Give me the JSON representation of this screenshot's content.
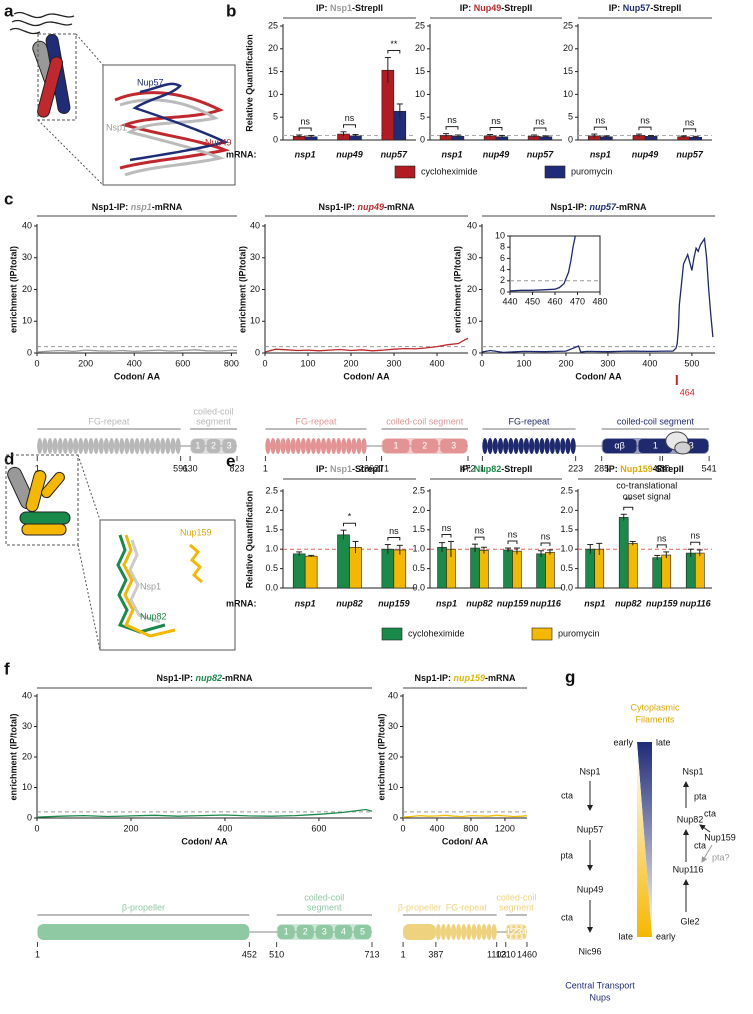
{
  "panel_labels": [
    "a",
    "b",
    "c",
    "d",
    "e",
    "f",
    "g"
  ],
  "panel_a": {
    "labels": [
      "Nup57",
      "Nsp1",
      "Nup49"
    ]
  },
  "panel_d": {
    "labels": [
      "Nup159",
      "Nsp1",
      "Nup82"
    ]
  },
  "panel_g": {
    "top_label": [
      "Cytoplasmic",
      "Filaments"
    ],
    "bottom_label": [
      "Central Transport",
      "Nups"
    ],
    "left_ends": [
      "early",
      "late"
    ],
    "right_ends": [
      "late",
      "early"
    ],
    "left_path": [
      "Nsp1",
      "cta",
      "Nup57",
      "pta",
      "Nup49",
      "cta",
      "Nic96"
    ],
    "right_nodes": [
      "Nsp1",
      "pta",
      "Nup82",
      "cta",
      "Nup159",
      "cta",
      "pta?",
      "Nup116",
      "Gle2"
    ]
  },
  "chart_data": [
    {
      "type": "bar",
      "title": [
        "IP: ",
        "Nsp1",
        "-StrepII"
      ],
      "title_colors": [
        "#111111",
        "#9a9a9a",
        "#111111"
      ],
      "ylabel": "Relative Quantification",
      "x_row_label": "mRNA:",
      "categories": [
        "nsp1",
        "nup49",
        "nup57"
      ],
      "series": [
        {
          "name": "cycloheximide",
          "color": "#b01c22",
          "values": [
            0.8,
            1.3,
            15.3
          ],
          "errors": [
            0.3,
            0.5,
            2.8
          ]
        },
        {
          "name": "puromycin",
          "color": "#1f2c78",
          "values": [
            0.7,
            0.9,
            6.3
          ],
          "errors": [
            0.3,
            0.3,
            1.6
          ]
        }
      ],
      "annotations": [
        "ns",
        "ns",
        "**"
      ],
      "hline": 1,
      "hline_color": "#aaaaaa",
      "ylim": [
        0,
        25
      ],
      "yticks": [
        0,
        5,
        10,
        15,
        20,
        25
      ]
    },
    {
      "type": "bar",
      "title": [
        "IP: ",
        "Nup49",
        "-StrepII"
      ],
      "title_colors": [
        "#111111",
        "#c0282d",
        "#111111"
      ],
      "categories": [
        "nsp1",
        "nup49",
        "nup57"
      ],
      "series": [
        {
          "color": "#b01c22",
          "values": [
            1.0,
            0.9,
            0.8
          ],
          "errors": [
            0.4,
            0.3,
            0.3
          ]
        },
        {
          "color": "#1f2c78",
          "values": [
            0.8,
            0.7,
            0.7
          ],
          "errors": [
            0.3,
            0.3,
            0.2
          ]
        }
      ],
      "annotations": [
        "ns",
        "ns",
        "ns"
      ],
      "hline": 1,
      "hline_color": "#aaaaaa",
      "ylim": [
        0,
        25
      ],
      "yticks": [
        0,
        5,
        10,
        15,
        20,
        25
      ]
    },
    {
      "type": "bar",
      "title": [
        "IP: ",
        "Nup57",
        "-StrepII"
      ],
      "title_colors": [
        "#111111",
        "#1f2c78",
        "#111111"
      ],
      "categories": [
        "nsp1",
        "nup49",
        "nup57"
      ],
      "series": [
        {
          "color": "#b01c22",
          "values": [
            0.9,
            1.0,
            0.7
          ],
          "errors": [
            0.4,
            0.3,
            0.2
          ]
        },
        {
          "color": "#1f2c78",
          "values": [
            0.7,
            0.8,
            0.6
          ],
          "errors": [
            0.2,
            0.2,
            0.2
          ]
        }
      ],
      "annotations": [
        "ns",
        "ns",
        "ns"
      ],
      "hline": 1,
      "hline_color": "#aaaaaa",
      "ylim": [
        0,
        25
      ],
      "yticks": [
        0,
        5,
        10,
        15,
        20,
        25
      ]
    },
    {
      "type": "line",
      "title": [
        "Nsp1-IP: ",
        "nsp1",
        "-mRNA"
      ],
      "title_colors": [
        "#111111",
        "#9a9a9a",
        "#111111"
      ],
      "ylabel": "enrichment (IP/total)",
      "xlabel": "Codon/ AA",
      "xlim": [
        0,
        823
      ],
      "xticks": [
        0,
        200,
        400,
        600,
        800
      ],
      "ylim": [
        0,
        40
      ],
      "yticks": [
        0,
        10,
        20,
        30,
        40
      ],
      "hline": 2,
      "hline_color": "#999999",
      "color": "#9a9a9a",
      "x": [
        0,
        50,
        100,
        150,
        200,
        250,
        300,
        350,
        400,
        450,
        500,
        550,
        600,
        650,
        700,
        750,
        800,
        823
      ],
      "values": [
        0.3,
        0.6,
        0.8,
        0.5,
        0.9,
        0.7,
        0.6,
        0.8,
        0.5,
        0.7,
        0.9,
        0.6,
        0.8,
        1.0,
        0.7,
        0.6,
        0.9,
        0.8
      ],
      "domain_color": "#b8b8b8",
      "domains": [
        {
          "label": "FG-repeat",
          "kind": "fg",
          "ticks": [
            1,
            591
          ]
        },
        {
          "label": [
            "coiled-coil",
            "segment"
          ],
          "kind": "coil",
          "ticks": [
            630,
            823
          ],
          "parts": [
            "1",
            "2",
            "3"
          ]
        }
      ]
    },
    {
      "type": "line",
      "title": [
        "Nsp1-IP: ",
        "nup49",
        "-mRNA"
      ],
      "title_colors": [
        "#111111",
        "#c0282d",
        "#111111"
      ],
      "ylabel": "enrichment (IP/total)",
      "xlabel": "Codon/ AA",
      "xlim": [
        0,
        472
      ],
      "xticks": [
        0,
        100,
        200,
        300,
        400
      ],
      "ylim": [
        0,
        40
      ],
      "yticks": [
        0,
        10,
        20,
        30,
        40
      ],
      "hline": 2,
      "hline_color": "#999999",
      "color": "#c0282d",
      "x": [
        0,
        25,
        50,
        75,
        100,
        125,
        150,
        175,
        200,
        225,
        250,
        275,
        300,
        325,
        350,
        375,
        400,
        425,
        450,
        465,
        472
      ],
      "values": [
        0.3,
        1.2,
        1.0,
        0.8,
        0.9,
        0.7,
        0.9,
        1.1,
        0.8,
        1.0,
        0.7,
        0.9,
        1.2,
        1.4,
        1.3,
        1.6,
        2.0,
        2.6,
        3.0,
        4.2,
        4.6
      ],
      "domain_color": "#e39393",
      "domains": [
        {
          "label": "FG-repeat",
          "kind": "fg",
          "ticks": [
            1,
            236
          ]
        },
        {
          "label": "coiled-coil segment",
          "kind": "coil",
          "ticks": [
            271,
            472
          ],
          "parts": [
            "1",
            "2",
            "3"
          ]
        }
      ]
    },
    {
      "type": "line",
      "title": [
        "Nsp1-IP: ",
        "nup57",
        "-mRNA"
      ],
      "title_colors": [
        "#111111",
        "#1f2c78",
        "#111111"
      ],
      "ylabel": "enrichment (IP/total)",
      "xlabel": "Codon/ AA",
      "xlim": [
        0,
        555
      ],
      "xticks": [
        0,
        100,
        200,
        300,
        400,
        500
      ],
      "ylim": [
        0,
        40
      ],
      "yticks": [
        0,
        10,
        20,
        30,
        40
      ],
      "hline": 2,
      "hline_color": "#999999",
      "color": "#1f2a6e",
      "x": [
        0,
        20,
        50,
        100,
        150,
        200,
        230,
        235,
        250,
        300,
        350,
        400,
        440,
        455,
        462,
        465,
        468,
        470,
        480,
        490,
        500,
        505,
        510,
        515,
        520,
        525,
        530,
        535,
        540,
        545,
        550
      ],
      "values": [
        0.3,
        0.8,
        0.2,
        0.5,
        0.4,
        0.6,
        2.2,
        0.3,
        0.5,
        0.4,
        0.6,
        0.5,
        0.6,
        0.6,
        1.5,
        3,
        8,
        15,
        28,
        31,
        26,
        30,
        33,
        32,
        34,
        35,
        36,
        30,
        20,
        12,
        5
      ],
      "domain_color": "#1f2a6e",
      "domains": [
        {
          "label": "FG-repeat",
          "kind": "fg",
          "ticks": [
            1,
            223
          ]
        },
        {
          "label": "coiled-coil segment",
          "kind": "coil",
          "ticks": [
            285,
            424,
            430,
            541
          ],
          "parts": [
            "αβ",
            "1",
            "3"
          ]
        }
      ],
      "marker": 464,
      "marker_note": [
        "co-translational",
        "onset signal"
      ],
      "inset": {
        "xlim": [
          440,
          480
        ],
        "ylim": [
          0,
          10
        ],
        "xticks": [
          440,
          450,
          460,
          470,
          480
        ],
        "yticks": [
          0,
          2,
          4,
          6,
          8,
          10
        ],
        "x": [
          440,
          445,
          450,
          455,
          460,
          462,
          464,
          466,
          467,
          468,
          469
        ],
        "values": [
          0.2,
          0.3,
          0.3,
          0.4,
          0.5,
          0.8,
          1.5,
          3.5,
          5.5,
          8,
          10
        ]
      }
    },
    {
      "type": "bar",
      "title": [
        "IP: ",
        "Nsp1",
        "-StrepII"
      ],
      "title_colors": [
        "#111111",
        "#9a9a9a",
        "#111111"
      ],
      "ylabel": "Relative Quantification",
      "x_row_label": "mRNA:",
      "categories": [
        "nsp1",
        "nup82",
        "nup159"
      ],
      "series": [
        {
          "name": "cycloheximide",
          "color": "#1a8a4a",
          "values": [
            0.88,
            1.37,
            1.0
          ],
          "errors": [
            0.05,
            0.12,
            0.12
          ]
        },
        {
          "name": "puromycin",
          "color": "#f5b800",
          "values": [
            0.82,
            1.05,
            0.98
          ],
          "errors": [
            0.02,
            0.15,
            0.12
          ]
        }
      ],
      "annotations": [
        null,
        "*",
        "ns"
      ],
      "hline": 1,
      "hline_color": "#e06060",
      "ylim": [
        0,
        2.5
      ],
      "yticks": [
        {
          "value": 0,
          "label": "0.0"
        },
        0.5,
        {
          "value": 1,
          "label": "1.0"
        },
        1.5,
        {
          "value": 2,
          "label": "2.0"
        },
        2.5
      ]
    },
    {
      "type": "bar",
      "title": [
        "IP: ",
        "Nup82",
        "-StrepII"
      ],
      "title_colors": [
        "#111111",
        "#1a8a4a",
        "#111111"
      ],
      "categories": [
        "nsp1",
        "nup82",
        "nup159",
        "nup116"
      ],
      "series": [
        {
          "color": "#1a8a4a",
          "values": [
            1.05,
            1.03,
            0.98,
            0.88
          ],
          "errors": [
            0.12,
            0.1,
            0.05,
            0.08
          ]
        },
        {
          "color": "#f5b800",
          "values": [
            1.0,
            0.97,
            0.95,
            0.92
          ],
          "errors": [
            0.2,
            0.08,
            0.08,
            0.06
          ]
        }
      ],
      "annotations": [
        "ns",
        "ns",
        "ns",
        "ns"
      ],
      "hline": 1,
      "hline_color": "#e06060",
      "ylim": [
        0,
        2.5
      ],
      "yticks": [
        {
          "value": 0,
          "label": "0.0"
        },
        0.5,
        {
          "value": 1,
          "label": "1.0"
        },
        1.5,
        {
          "value": 2,
          "label": "2.0"
        },
        2.5
      ]
    },
    {
      "type": "bar",
      "title": [
        "IP: ",
        "Nup159",
        "-StrepII"
      ],
      "title_colors": [
        "#111111",
        "#e0a800",
        "#111111"
      ],
      "categories": [
        "nsp1",
        "nup82",
        "nup159",
        "nup116"
      ],
      "series": [
        {
          "color": "#1a8a4a",
          "values": [
            1.0,
            1.82,
            0.78,
            0.9
          ],
          "errors": [
            0.12,
            0.08,
            0.06,
            0.1
          ]
        },
        {
          "color": "#f5b800",
          "values": [
            1.0,
            1.15,
            0.85,
            0.9
          ],
          "errors": [
            0.15,
            0.05,
            0.08,
            0.08
          ]
        }
      ],
      "annotations": [
        null,
        "**",
        "ns",
        "ns"
      ],
      "hline": 1,
      "hline_color": "#e06060",
      "ylim": [
        0,
        2.5
      ],
      "yticks": [
        {
          "value": 0,
          "label": "0.0"
        },
        0.5,
        {
          "value": 1,
          "label": "1.0"
        },
        1.5,
        {
          "value": 2,
          "label": "2.0"
        },
        2.5
      ]
    },
    {
      "type": "line",
      "title": [
        "Nsp1-IP: ",
        "nup82",
        "-mRNA"
      ],
      "title_colors": [
        "#111111",
        "#1a8a4a",
        "#111111"
      ],
      "ylabel": "enrichment (IP/total)",
      "xlabel": "Codon/ AA",
      "xlim": [
        0,
        713
      ],
      "xticks": [
        0,
        200,
        400,
        600
      ],
      "ylim": [
        0,
        40
      ],
      "yticks": [
        0,
        10,
        20,
        30,
        40
      ],
      "hline": 2,
      "hline_color": "#999999",
      "color": "#1a8a4a",
      "x": [
        0,
        50,
        100,
        150,
        200,
        250,
        300,
        350,
        400,
        450,
        500,
        550,
        600,
        650,
        700,
        713
      ],
      "values": [
        0.3,
        0.6,
        0.8,
        0.5,
        0.7,
        0.9,
        0.6,
        0.8,
        1.0,
        0.7,
        0.6,
        0.8,
        1.2,
        1.8,
        2.8,
        2.2
      ],
      "domain_color": "#8fc9a3",
      "domains": [
        {
          "label": "β-propeller",
          "kind": "propeller",
          "ticks": [
            1,
            452
          ]
        },
        {
          "label": [
            "coiled-coil",
            "segment"
          ],
          "kind": "coil",
          "ticks": [
            510,
            713
          ],
          "parts": [
            "1",
            "2",
            "3",
            "4",
            "5"
          ]
        }
      ]
    },
    {
      "type": "line",
      "title": [
        "Nsp1-IP: ",
        "nup159",
        "-mRNA"
      ],
      "title_colors": [
        "#111111",
        "#e0b800",
        "#111111"
      ],
      "ylabel": "enrichment (IP/total)",
      "xlabel": "Codon/ AA",
      "xlim": [
        0,
        1460
      ],
      "xticks": [
        0,
        400,
        800,
        1200
      ],
      "ylim": [
        0,
        40
      ],
      "yticks": [
        0,
        10,
        20,
        30,
        40
      ],
      "hline": 2,
      "hline_color": "#999999",
      "color": "#f0c000",
      "x": [
        0,
        100,
        200,
        300,
        400,
        500,
        600,
        700,
        800,
        900,
        1000,
        1100,
        1200,
        1300,
        1400,
        1460
      ],
      "values": [
        0.3,
        0.5,
        0.8,
        0.6,
        0.7,
        0.9,
        0.6,
        0.5,
        0.8,
        0.7,
        0.6,
        0.9,
        0.7,
        0.5,
        0.6,
        0.8
      ],
      "domain_color": "#efd27e",
      "domains": [
        {
          "label": "β-propeller",
          "kind": "propeller",
          "ticks": [
            1,
            387
          ]
        },
        {
          "label": "FG-repeat",
          "kind": "fg",
          "ticks": [
            1103
          ]
        },
        {
          "label": [
            "coiled-coil",
            "segment"
          ],
          "kind": "coil",
          "ticks": [
            1210,
            1460
          ],
          "parts": [
            "1",
            "2",
            "3",
            "4"
          ]
        }
      ]
    }
  ]
}
